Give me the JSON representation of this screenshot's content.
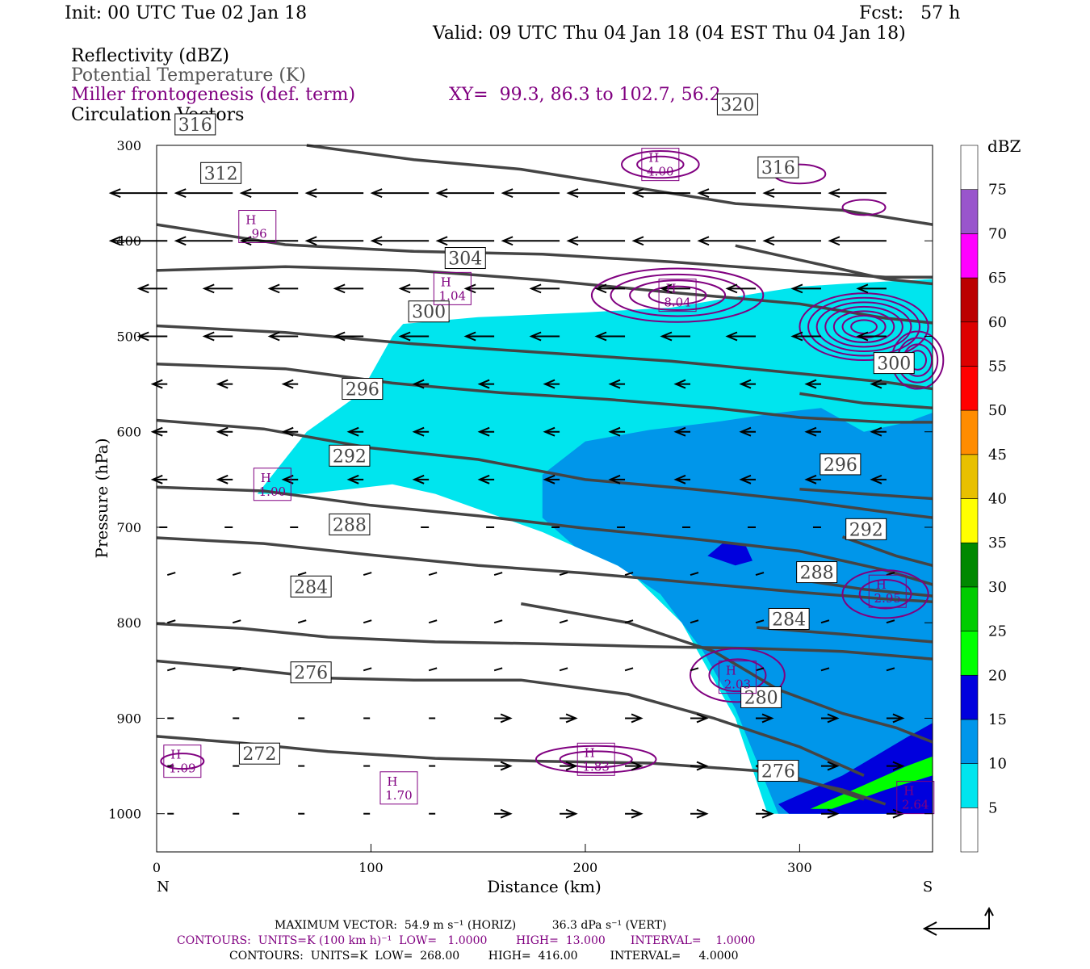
{
  "header": {
    "init": "Init: 00 UTC Tue 02 Jan 18",
    "fcst": "Fcst:   57 h",
    "valid": "Valid: 09 UTC Thu 04 Jan 18 (04 EST Thu 04 Jan 18)"
  },
  "fields": {
    "reflectivity": "Reflectivity (dBZ)",
    "theta": "Potential Temperature (K)",
    "miller": "Miller frontogenesis (def. term)",
    "xy": "XY=  99.3, 86.3 to 102.7, 56.2",
    "vectors": "Circulation Vectors"
  },
  "footer": {
    "max_vector": "MAXIMUM VECTOR:  54.9 m s⁻¹ (HORIZ)          36.3 dPa s⁻¹ (VERT)",
    "contours1": "CONTOURS:  UNITS=K (100 km h)⁻¹  LOW=   1.0000        HIGH=  13.000       INTERVAL=    1.0000",
    "contours2": "CONTOURS:  UNITS=K  LOW=  268.00        HIGH=  416.00         INTERVAL=     4.0000"
  },
  "colors": {
    "theta": "#444444",
    "miller": "#800080",
    "refl_5": "#00e5ee",
    "refl_10": "#0096ea",
    "refl_15": "#0000dd"
  },
  "chart_data": {
    "type": "cross-section",
    "xlabel": "Distance (km)",
    "ylabel": "Pressure (hPa)",
    "xlim": [
      0,
      362
    ],
    "ylim": [
      1040,
      300
    ],
    "xticks": [
      0,
      100,
      200,
      300
    ],
    "yticks": [
      300,
      400,
      500,
      600,
      700,
      800,
      900,
      1000
    ],
    "left_end_label": "N",
    "right_end_label": "S",
    "colorbar": {
      "title": "dBZ",
      "levels": [
        5,
        10,
        15,
        20,
        25,
        30,
        35,
        40,
        45,
        50,
        55,
        60,
        65,
        70,
        75
      ],
      "colors": [
        "#ffffff",
        "#00e5ee",
        "#0096ea",
        "#0000dd",
        "#00ff00",
        "#00cc00",
        "#008800",
        "#ffff00",
        "#e8c000",
        "#ff8c00",
        "#ff0000",
        "#dd0000",
        "#bb0000",
        "#ff00ff",
        "#9955cc",
        "#ffffff"
      ]
    },
    "theta_contours": [
      {
        "value": 272,
        "label": "272",
        "points": [
          [
            0,
            919
          ],
          [
            40,
            926
          ],
          [
            80,
            935
          ],
          [
            130,
            942
          ],
          [
            180,
            945
          ],
          [
            230,
            947
          ],
          [
            280,
            955
          ],
          [
            320,
            975
          ],
          [
            340,
            990
          ]
        ],
        "label_at": [
          48,
          937
        ]
      },
      {
        "value": 276,
        "label": "276",
        "points": [
          [
            0,
            840
          ],
          [
            40,
            848
          ],
          [
            80,
            858
          ],
          [
            120,
            860
          ],
          [
            170,
            860
          ],
          [
            220,
            875
          ],
          [
            260,
            900
          ],
          [
            300,
            930
          ],
          [
            330,
            960
          ]
        ],
        "label_at": [
          72,
          852
        ]
      },
      {
        "value": 280,
        "label": "280",
        "points": [
          [
            170,
            780
          ],
          [
            220,
            800
          ],
          [
            260,
            830
          ],
          [
            290,
            870
          ],
          [
            320,
            895
          ],
          [
            345,
            910
          ],
          [
            362,
            925
          ]
        ],
        "label_at": [
          282,
          878
        ]
      },
      {
        "value": 284,
        "label": "284",
        "points": [
          [
            0,
            801
          ],
          [
            40,
            806
          ],
          [
            80,
            815
          ],
          [
            130,
            820
          ],
          [
            180,
            822
          ],
          [
            230,
            825
          ],
          [
            280,
            827
          ],
          [
            320,
            830
          ],
          [
            362,
            838
          ]
        ],
        "label_at": [
          72,
          762
        ]
      },
      {
        "value": 288,
        "label": "288",
        "points": [
          [
            0,
            711
          ],
          [
            50,
            717
          ],
          [
            100,
            729
          ],
          [
            150,
            740
          ],
          [
            200,
            748
          ],
          [
            250,
            758
          ],
          [
            300,
            768
          ],
          [
            340,
            775
          ],
          [
            362,
            778
          ]
        ],
        "label_at": [
          90,
          697
        ]
      },
      {
        "value": 292,
        "label": "292",
        "points": [
          [
            0,
            658
          ],
          [
            50,
            662
          ],
          [
            100,
            677
          ],
          [
            150,
            688
          ],
          [
            200,
            701
          ],
          [
            250,
            712
          ],
          [
            300,
            725
          ],
          [
            340,
            745
          ],
          [
            362,
            760
          ]
        ],
        "label_at": [
          90,
          625
        ]
      },
      {
        "value": 296,
        "label": "296",
        "points": [
          [
            0,
            588
          ],
          [
            50,
            597
          ],
          [
            100,
            617
          ],
          [
            150,
            629
          ],
          [
            200,
            650
          ],
          [
            250,
            660
          ],
          [
            300,
            672
          ],
          [
            340,
            684
          ],
          [
            362,
            690
          ]
        ],
        "label_at": [
          96,
          555
        ]
      },
      {
        "value": 300,
        "label": "300",
        "points": [
          [
            0,
            529
          ],
          [
            60,
            534
          ],
          [
            110,
            549
          ],
          [
            160,
            559
          ],
          [
            210,
            566
          ],
          [
            260,
            575
          ],
          [
            300,
            585
          ],
          [
            340,
            590
          ],
          [
            362,
            590
          ]
        ],
        "label_at": [
          127,
          474
        ]
      },
      {
        "value": 304,
        "label": "304",
        "points": [
          [
            0,
            489
          ],
          [
            60,
            496
          ],
          [
            120,
            508
          ],
          [
            180,
            517
          ],
          [
            240,
            526
          ],
          [
            300,
            539
          ],
          [
            340,
            548
          ],
          [
            362,
            555
          ]
        ],
        "label_at": [
          144,
          418
        ]
      },
      {
        "value": 312,
        "label": "312",
        "points": [
          [
            0,
            431
          ],
          [
            60,
            427
          ],
          [
            120,
            431
          ],
          [
            180,
            441
          ],
          [
            240,
            454
          ],
          [
            300,
            466
          ],
          [
            340,
            481
          ],
          [
            362,
            486
          ]
        ],
        "label_at": [
          30,
          329
        ]
      },
      {
        "value": 316,
        "label": "316",
        "points": [
          [
            0,
            383
          ],
          [
            60,
            404
          ],
          [
            120,
            411
          ],
          [
            180,
            414
          ],
          [
            240,
            422
          ],
          [
            300,
            432
          ],
          [
            340,
            438
          ],
          [
            362,
            438
          ]
        ],
        "label_at": [
          18,
          278
        ]
      },
      {
        "value": 320,
        "label": "320",
        "points": [
          [
            70,
            300
          ],
          [
            120,
            315
          ],
          [
            170,
            325
          ],
          [
            220,
            343
          ],
          [
            270,
            361
          ],
          [
            320,
            368
          ],
          [
            362,
            383
          ]
        ],
        "label_at": [
          271,
          257
        ]
      },
      {
        "value": 316,
        "label": "316",
        "points": [
          [
            270,
            405
          ],
          [
            300,
            420
          ],
          [
            340,
            440
          ],
          [
            362,
            445
          ]
        ],
        "label_at": [
          290,
          323
        ]
      },
      {
        "value": 300,
        "label": "300",
        "points": [
          [
            300,
            560
          ],
          [
            330,
            570
          ],
          [
            362,
            575
          ]
        ],
        "label_at": [
          344,
          528
        ]
      },
      {
        "value": 296,
        "label": "296",
        "points": [
          [
            300,
            660
          ],
          [
            330,
            665
          ],
          [
            362,
            670
          ]
        ],
        "label_at": [
          319,
          634
        ]
      },
      {
        "value": 292,
        "label": "292",
        "points": [
          [
            320,
            710
          ],
          [
            345,
            730
          ],
          [
            362,
            740
          ]
        ],
        "label_at": [
          331,
          702
        ]
      },
      {
        "value": 288,
        "label": "288",
        "points": [
          [
            300,
            755
          ],
          [
            330,
            765
          ],
          [
            362,
            772
          ]
        ],
        "label_at": [
          308,
          747
        ]
      },
      {
        "value": 284,
        "label": "284",
        "points": [
          [
            280,
            805
          ],
          [
            320,
            812
          ],
          [
            362,
            820
          ]
        ],
        "label_at": [
          295,
          796
        ]
      },
      {
        "value": 276,
        "label": "276",
        "points": [
          [
            280,
            950
          ],
          [
            310,
            970
          ],
          [
            330,
            985
          ]
        ],
        "label_at": [
          290,
          955
        ]
      }
    ],
    "miller_maxima": [
      {
        "label": "H",
        "value": "4.00",
        "x": 235,
        "p": 320
      },
      {
        "label": "H",
        "value": ".96",
        "x": 47,
        "p": 385
      },
      {
        "label": "H",
        "value": "1.04",
        "x": 138,
        "p": 450
      },
      {
        "label": "H",
        "value": "8.04",
        "x": 243,
        "p": 457
      },
      {
        "label": "H",
        "value": "1.00",
        "x": 54,
        "p": 655
      },
      {
        "label": "H",
        "value": "2.95",
        "x": 341,
        "p": 767
      },
      {
        "label": "H",
        "value": "2.03",
        "x": 271,
        "p": 857
      },
      {
        "label": "H",
        "value": "1.83",
        "x": 205,
        "p": 943
      },
      {
        "label": "H",
        "value": "1.09",
        "x": 12,
        "p": 945
      },
      {
        "label": "H",
        "value": "1.70",
        "x": 113,
        "p": 973
      },
      {
        "label": "H",
        "value": "2.64",
        "x": 354,
        "p": 983
      }
    ],
    "reflectivity_regions": [
      {
        "level": 5,
        "polygon": [
          [
            47,
            665
          ],
          [
            70,
            600
          ],
          [
            95,
            560
          ],
          [
            110,
            500
          ],
          [
            115,
            487
          ],
          [
            150,
            480
          ],
          [
            200,
            475
          ],
          [
            240,
            470
          ],
          [
            280,
            455
          ],
          [
            300,
            448
          ],
          [
            320,
            445
          ],
          [
            362,
            440
          ],
          [
            362,
            1000
          ],
          [
            285,
            1000
          ],
          [
            270,
            900
          ],
          [
            260,
            860
          ],
          [
            245,
            800
          ],
          [
            220,
            745
          ],
          [
            180,
            705
          ],
          [
            130,
            665
          ],
          [
            110,
            655
          ],
          [
            90,
            660
          ],
          [
            70,
            665
          ]
        ]
      },
      {
        "level": 10,
        "polygon": [
          [
            180,
            645
          ],
          [
            200,
            610
          ],
          [
            230,
            598
          ],
          [
            260,
            590
          ],
          [
            290,
            580
          ],
          [
            310,
            575
          ],
          [
            330,
            600
          ],
          [
            350,
            590
          ],
          [
            362,
            580
          ],
          [
            362,
            1000
          ],
          [
            290,
            1000
          ],
          [
            270,
            890
          ],
          [
            255,
            830
          ],
          [
            235,
            770
          ],
          [
            215,
            740
          ],
          [
            195,
            720
          ],
          [
            180,
            690
          ]
        ]
      },
      {
        "level": 15,
        "polygon": [
          [
            290,
            990
          ],
          [
            320,
            960
          ],
          [
            350,
            920
          ],
          [
            362,
            905
          ],
          [
            362,
            1000
          ],
          [
            295,
            1000
          ]
        ]
      },
      {
        "level": 15,
        "polygon": [
          [
            257,
            730
          ],
          [
            265,
            715
          ],
          [
            275,
            720
          ],
          [
            278,
            735
          ],
          [
            270,
            740
          ]
        ]
      },
      {
        "level": 20,
        "polygon": [
          [
            305,
            995
          ],
          [
            330,
            970
          ],
          [
            350,
            950
          ],
          [
            362,
            940
          ],
          [
            362,
            960
          ],
          [
            340,
            975
          ],
          [
            315,
            995
          ]
        ]
      }
    ]
  }
}
